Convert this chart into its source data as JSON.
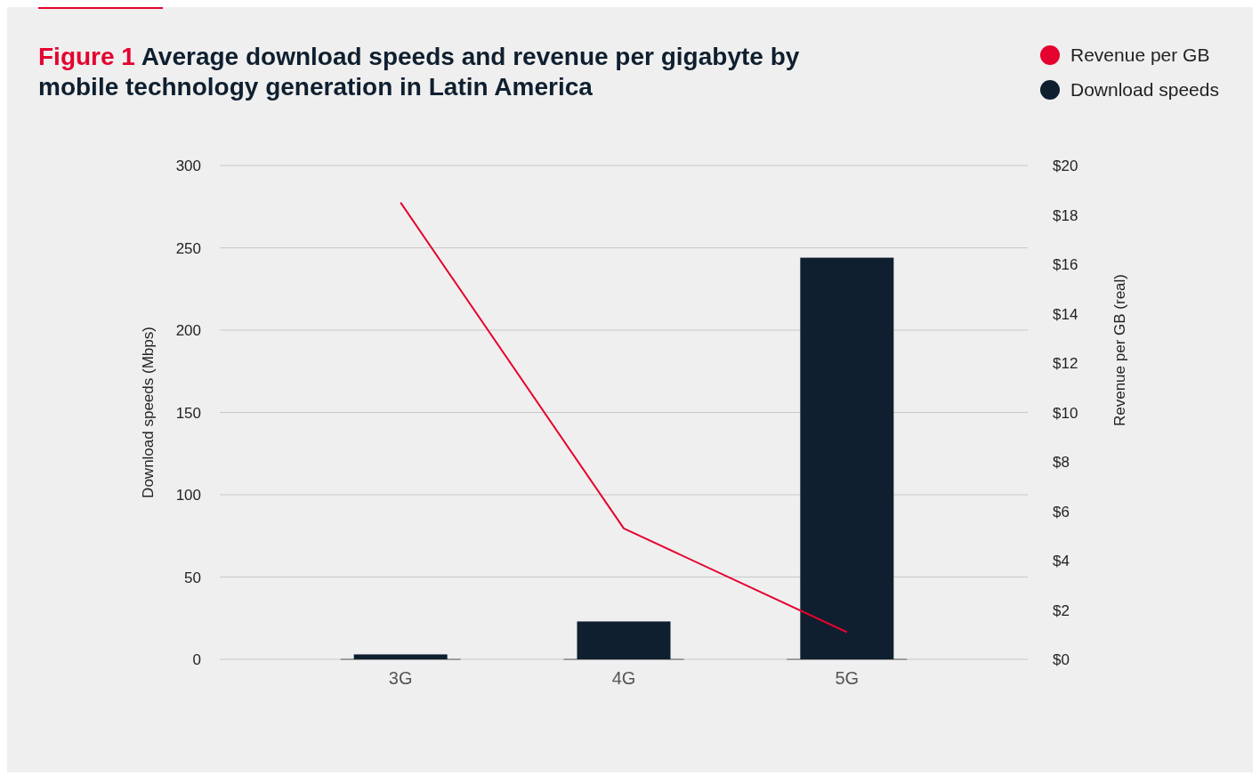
{
  "chart_data": {
    "type": "bar",
    "title": "Figure 1 Average download speeds and revenue per gigabyte by mobile technology generation in Latin America",
    "ylabel": "Download speeds (Mbps)",
    "y2label": "Revenue per GB (real)",
    "categories": [
      "3G",
      "4G",
      "5G"
    ],
    "series": [
      {
        "name": "Revenue per GB",
        "type": "line",
        "axis": "y2",
        "color": "#e4032e",
        "values": [
          18.5,
          5.3,
          1.1
        ]
      },
      {
        "name": "Download speeds",
        "color": "#0f1f2f",
        "values": [
          3,
          23,
          244
        ]
      }
    ],
    "ylim": [
      0,
      300
    ],
    "yticks": [
      0,
      50,
      100,
      150,
      200,
      250,
      300
    ],
    "y2lim": [
      0,
      20
    ],
    "y2ticks": [
      {
        "value": 0,
        "label": "$0"
      },
      {
        "value": 2,
        "label": "$2"
      },
      {
        "value": 4,
        "label": "$4"
      },
      {
        "value": 6,
        "label": "$6"
      },
      {
        "value": 8,
        "label": "$8"
      },
      {
        "value": 10,
        "label": "$10"
      },
      {
        "value": 12,
        "label": "$12"
      },
      {
        "value": 14,
        "label": "$14"
      },
      {
        "value": 16,
        "label": "$16"
      },
      {
        "value": 18,
        "label": "$18"
      },
      {
        "value": 20,
        "label": "$20"
      }
    ],
    "grid": "y",
    "legend": "top right"
  }
}
